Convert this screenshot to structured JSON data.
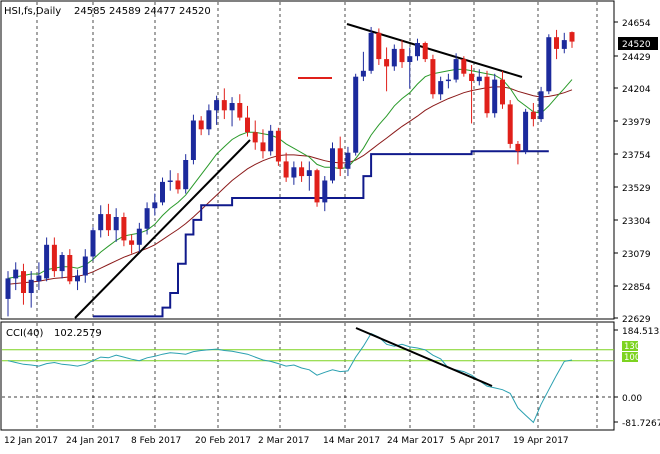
{
  "main_header": {
    "symbol": "HSI,fs,Daily",
    "ohlc": "24585 24589 24477 24520"
  },
  "price_axis": {
    "ticks": [
      "24654",
      "24429",
      "24204",
      "23979",
      "23754",
      "23529",
      "23304",
      "23079",
      "22854",
      "22629"
    ],
    "current_label": "24520"
  },
  "indicator_header": {
    "name": "CCI(40)",
    "value": "102.2579"
  },
  "indicator_axis": {
    "ticks": [
      "184.5133",
      "130",
      "100",
      "0.00",
      "-81.7267"
    ]
  },
  "date_axis": {
    "labels": [
      "12 Jan 2017",
      "24 Jan 2017",
      "8 Feb 2017",
      "20 Feb 2017",
      "2 Mar 2017",
      "14 Mar 2017",
      "24 Mar 2017",
      "5 Apr 2017",
      "19 Apr 2017"
    ]
  },
  "colors": {
    "bull": "#1c2a9c",
    "bear": "#e0201a",
    "ma_fast": "#2a9a2a",
    "ma_slow": "#8b1a1a",
    "support_line": "#101a8c",
    "cci_line": "#2aa0b0",
    "cci_levels": "#7dd321",
    "trendline": "#000000",
    "price_label_bg": "#000000"
  },
  "chart_data": [
    {
      "type": "candlestick",
      "title": "HSI,fs,Daily",
      "ylim": [
        22629,
        24700
      ],
      "candles": [
        {
          "d": "10 Jan",
          "o": 22760,
          "h": 22950,
          "l": 22640,
          "c": 22900
        },
        {
          "d": "11 Jan",
          "o": 22900,
          "h": 23010,
          "l": 22820,
          "c": 22960
        },
        {
          "d": "12 Jan",
          "o": 22950,
          "h": 23000,
          "l": 22720,
          "c": 22800
        },
        {
          "d": "13 Jan",
          "o": 22800,
          "h": 22950,
          "l": 22700,
          "c": 22890
        },
        {
          "d": "16 Jan",
          "o": 22880,
          "h": 23010,
          "l": 22820,
          "c": 22920
        },
        {
          "d": "17 Jan",
          "o": 22900,
          "h": 23180,
          "l": 22880,
          "c": 23130
        },
        {
          "d": "18 Jan",
          "o": 23130,
          "h": 23180,
          "l": 22910,
          "c": 22950
        },
        {
          "d": "19 Jan",
          "o": 22950,
          "h": 23080,
          "l": 22900,
          "c": 23060
        },
        {
          "d": "20 Jan",
          "o": 23060,
          "h": 23100,
          "l": 22860,
          "c": 22880
        },
        {
          "d": "23 Jan",
          "o": 22880,
          "h": 22960,
          "l": 22820,
          "c": 22920
        },
        {
          "d": "24 Jan",
          "o": 22920,
          "h": 23100,
          "l": 22870,
          "c": 23050
        },
        {
          "d": "25 Jan",
          "o": 23050,
          "h": 23250,
          "l": 23020,
          "c": 23230
        },
        {
          "d": "26 Jan",
          "o": 23230,
          "h": 23400,
          "l": 23180,
          "c": 23340
        },
        {
          "d": "27 Jan",
          "o": 23340,
          "h": 23410,
          "l": 23190,
          "c": 23230
        },
        {
          "d": "1 Feb",
          "o": 23230,
          "h": 23380,
          "l": 23150,
          "c": 23320
        },
        {
          "d": "2 Feb",
          "o": 23320,
          "h": 23350,
          "l": 23120,
          "c": 23160
        },
        {
          "d": "3 Feb",
          "o": 23160,
          "h": 23200,
          "l": 23070,
          "c": 23130
        },
        {
          "d": "6 Feb",
          "o": 23130,
          "h": 23280,
          "l": 23080,
          "c": 23240
        },
        {
          "d": "7 Feb",
          "o": 23240,
          "h": 23420,
          "l": 23200,
          "c": 23380
        },
        {
          "d": "8 Feb",
          "o": 23380,
          "h": 23480,
          "l": 23330,
          "c": 23420
        },
        {
          "d": "9 Feb",
          "o": 23420,
          "h": 23590,
          "l": 23400,
          "c": 23560
        },
        {
          "d": "10 Feb",
          "o": 23560,
          "h": 23640,
          "l": 23500,
          "c": 23570
        },
        {
          "d": "13 Feb",
          "o": 23570,
          "h": 23620,
          "l": 23480,
          "c": 23510
        },
        {
          "d": "14 Feb",
          "o": 23510,
          "h": 23750,
          "l": 23480,
          "c": 23710
        },
        {
          "d": "15 Feb",
          "o": 23710,
          "h": 24020,
          "l": 23680,
          "c": 23980
        },
        {
          "d": "16 Feb",
          "o": 23980,
          "h": 24010,
          "l": 23880,
          "c": 23920
        },
        {
          "d": "17 Feb",
          "o": 23920,
          "h": 24090,
          "l": 23880,
          "c": 24050
        },
        {
          "d": "20 Feb",
          "o": 24050,
          "h": 24150,
          "l": 23950,
          "c": 24120
        },
        {
          "d": "21 Feb",
          "o": 24120,
          "h": 24200,
          "l": 23990,
          "c": 24050
        },
        {
          "d": "22 Feb",
          "o": 24050,
          "h": 24140,
          "l": 23940,
          "c": 24100
        },
        {
          "d": "23 Feb",
          "o": 24100,
          "h": 24160,
          "l": 23980,
          "c": 24000
        },
        {
          "d": "24 Feb",
          "o": 24000,
          "h": 24080,
          "l": 23870,
          "c": 23900
        },
        {
          "d": "27 Feb",
          "o": 23900,
          "h": 23980,
          "l": 23780,
          "c": 23830
        },
        {
          "d": "28 Feb",
          "o": 23830,
          "h": 23920,
          "l": 23720,
          "c": 23770
        },
        {
          "d": "1 Mar",
          "o": 23770,
          "h": 23950,
          "l": 23740,
          "c": 23910
        },
        {
          "d": "2 Mar",
          "o": 23910,
          "h": 23930,
          "l": 23670,
          "c": 23700
        },
        {
          "d": "3 Mar",
          "o": 23700,
          "h": 23760,
          "l": 23560,
          "c": 23590
        },
        {
          "d": "6 Mar",
          "o": 23590,
          "h": 23700,
          "l": 23540,
          "c": 23660
        },
        {
          "d": "7 Mar",
          "o": 23660,
          "h": 23700,
          "l": 23560,
          "c": 23600
        },
        {
          "d": "8 Mar",
          "o": 23600,
          "h": 23700,
          "l": 23500,
          "c": 23640
        },
        {
          "d": "9 Mar",
          "o": 23640,
          "h": 23650,
          "l": 23390,
          "c": 23420
        },
        {
          "d": "10 Mar",
          "o": 23420,
          "h": 23600,
          "l": 23360,
          "c": 23570
        },
        {
          "d": "13 Mar",
          "o": 23570,
          "h": 23830,
          "l": 23550,
          "c": 23790
        },
        {
          "d": "14 Mar",
          "o": 23790,
          "h": 23870,
          "l": 23600,
          "c": 23650
        },
        {
          "d": "15 Mar",
          "o": 23650,
          "h": 23800,
          "l": 23600,
          "c": 23760
        },
        {
          "d": "16 Mar",
          "o": 23760,
          "h": 24300,
          "l": 23740,
          "c": 24280
        },
        {
          "d": "17 Mar",
          "o": 24280,
          "h": 24450,
          "l": 24250,
          "c": 24320
        },
        {
          "d": "20 Mar",
          "o": 24320,
          "h": 24620,
          "l": 24300,
          "c": 24580
        },
        {
          "d": "21 Mar",
          "o": 24580,
          "h": 24610,
          "l": 24360,
          "c": 24400
        },
        {
          "d": "22 Mar",
          "o": 24400,
          "h": 24480,
          "l": 24180,
          "c": 24350
        },
        {
          "d": "23 Mar",
          "o": 24350,
          "h": 24500,
          "l": 24320,
          "c": 24470
        },
        {
          "d": "24 Mar",
          "o": 24470,
          "h": 24530,
          "l": 24340,
          "c": 24380
        },
        {
          "d": "27 Mar",
          "o": 24380,
          "h": 24480,
          "l": 24200,
          "c": 24420
        },
        {
          "d": "28 Mar",
          "o": 24420,
          "h": 24540,
          "l": 24390,
          "c": 24510
        },
        {
          "d": "29 Mar",
          "o": 24510,
          "h": 24520,
          "l": 24380,
          "c": 24400
        },
        {
          "d": "30 Mar",
          "o": 24400,
          "h": 24430,
          "l": 24130,
          "c": 24160
        },
        {
          "d": "31 Mar",
          "o": 24160,
          "h": 24280,
          "l": 24120,
          "c": 24250
        },
        {
          "d": "3 Apr",
          "o": 24250,
          "h": 24300,
          "l": 24200,
          "c": 24260
        },
        {
          "d": "5 Apr",
          "o": 24260,
          "h": 24440,
          "l": 24240,
          "c": 24400
        },
        {
          "d": "6 Apr",
          "o": 24400,
          "h": 24420,
          "l": 24280,
          "c": 24300
        },
        {
          "d": "7 Apr",
          "o": 24300,
          "h": 24360,
          "l": 23960,
          "c": 24250
        },
        {
          "d": "10 Apr",
          "o": 24250,
          "h": 24330,
          "l": 24220,
          "c": 24280
        },
        {
          "d": "11 Apr",
          "o": 24280,
          "h": 24320,
          "l": 24000,
          "c": 24030
        },
        {
          "d": "12 Apr",
          "o": 24030,
          "h": 24300,
          "l": 24000,
          "c": 24260
        },
        {
          "d": "13 Apr",
          "o": 24260,
          "h": 24320,
          "l": 24060,
          "c": 24090
        },
        {
          "d": "18 Apr",
          "o": 24090,
          "h": 24120,
          "l": 23790,
          "c": 23820
        },
        {
          "d": "19 Apr",
          "o": 23820,
          "h": 23840,
          "l": 23680,
          "c": 23770
        },
        {
          "d": "20 Apr",
          "o": 23770,
          "h": 24060,
          "l": 23750,
          "c": 24040
        },
        {
          "d": "21 Apr",
          "o": 24040,
          "h": 24100,
          "l": 23940,
          "c": 23990
        },
        {
          "d": "24 Apr",
          "o": 23990,
          "h": 24210,
          "l": 23970,
          "c": 24180
        },
        {
          "d": "25 Apr",
          "o": 24180,
          "h": 24570,
          "l": 24160,
          "c": 24550
        },
        {
          "d": "26 Apr",
          "o": 24550,
          "h": 24600,
          "l": 24400,
          "c": 24470
        },
        {
          "d": "27 Apr",
          "o": 24470,
          "h": 24580,
          "l": 24440,
          "c": 24530
        },
        {
          "d": "28 Apr",
          "o": 24585,
          "h": 24589,
          "l": 24477,
          "c": 24520
        }
      ],
      "ma_fast": [
        22900,
        22910,
        22920,
        22930,
        22930,
        22960,
        22970,
        22980,
        22980,
        22970,
        22990,
        23030,
        23080,
        23120,
        23160,
        23190,
        23200,
        23210,
        23230,
        23270,
        23330,
        23380,
        23420,
        23470,
        23540,
        23610,
        23680,
        23750,
        23800,
        23850,
        23880,
        23900,
        23900,
        23890,
        23880,
        23860,
        23820,
        23790,
        23760,
        23730,
        23680,
        23660,
        23660,
        23650,
        23660,
        23720,
        23790,
        23880,
        23950,
        24010,
        24080,
        24130,
        24170,
        24230,
        24280,
        24300,
        24310,
        24320,
        24330,
        24330,
        24320,
        24310,
        24300,
        24290,
        24260,
        24200,
        24120,
        24080,
        24040,
        24030,
        24080,
        24140,
        24200,
        24260
      ],
      "ma_slow": [
        22860,
        22865,
        22870,
        22875,
        22880,
        22890,
        22900,
        22905,
        22910,
        22915,
        22925,
        22945,
        22970,
        22995,
        23020,
        23045,
        23065,
        23085,
        23105,
        23130,
        23165,
        23200,
        23235,
        23275,
        23320,
        23370,
        23420,
        23470,
        23520,
        23570,
        23610,
        23650,
        23680,
        23705,
        23725,
        23740,
        23745,
        23745,
        23740,
        23735,
        23720,
        23705,
        23695,
        23690,
        23690,
        23710,
        23740,
        23780,
        23820,
        23860,
        23900,
        23940,
        23975,
        24010,
        24050,
        24080,
        24105,
        24130,
        24150,
        24170,
        24185,
        24195,
        24205,
        24210,
        24210,
        24200,
        24180,
        24165,
        24150,
        24140,
        24145,
        24155,
        24170,
        24190
      ],
      "support": [
        null,
        null,
        null,
        null,
        null,
        null,
        null,
        null,
        null,
        null,
        null,
        22640,
        22640,
        22640,
        22640,
        22640,
        22640,
        22640,
        22640,
        22640,
        22700,
        22800,
        23000,
        23200,
        23300,
        23400,
        23400,
        23400,
        23400,
        23450,
        23450,
        23450,
        23450,
        23450,
        23450,
        23450,
        23450,
        23450,
        23450,
        23450,
        23450,
        23450,
        23450,
        23450,
        23450,
        23450,
        23600,
        23750,
        23750,
        23750,
        23750,
        23750,
        23750,
        23750,
        23750,
        23750,
        23750,
        23750,
        23750,
        23750,
        23770,
        23770,
        23770,
        23770,
        23770,
        23770,
        23770,
        23770,
        23770,
        23770,
        23770,
        null,
        null,
        null
      ]
    },
    {
      "type": "line",
      "title": "CCI(40)",
      "ylim": [
        -81.7267,
        184.5133
      ],
      "levels": [
        130,
        100,
        0
      ],
      "values": [
        100,
        95,
        90,
        88,
        85,
        92,
        95,
        90,
        88,
        85,
        90,
        100,
        110,
        108,
        115,
        110,
        104,
        100,
        108,
        112,
        118,
        122,
        120,
        118,
        125,
        128,
        130,
        132,
        128,
        126,
        122,
        118,
        110,
        102,
        98,
        92,
        85,
        88,
        80,
        75,
        60,
        68,
        75,
        70,
        72,
        110,
        140,
        175,
        165,
        145,
        140,
        145,
        138,
        135,
        130,
        115,
        105,
        80,
        75,
        70,
        60,
        45,
        30,
        25,
        20,
        10,
        -30,
        -50,
        -70,
        -20,
        20,
        60,
        98,
        102
      ]
    }
  ]
}
